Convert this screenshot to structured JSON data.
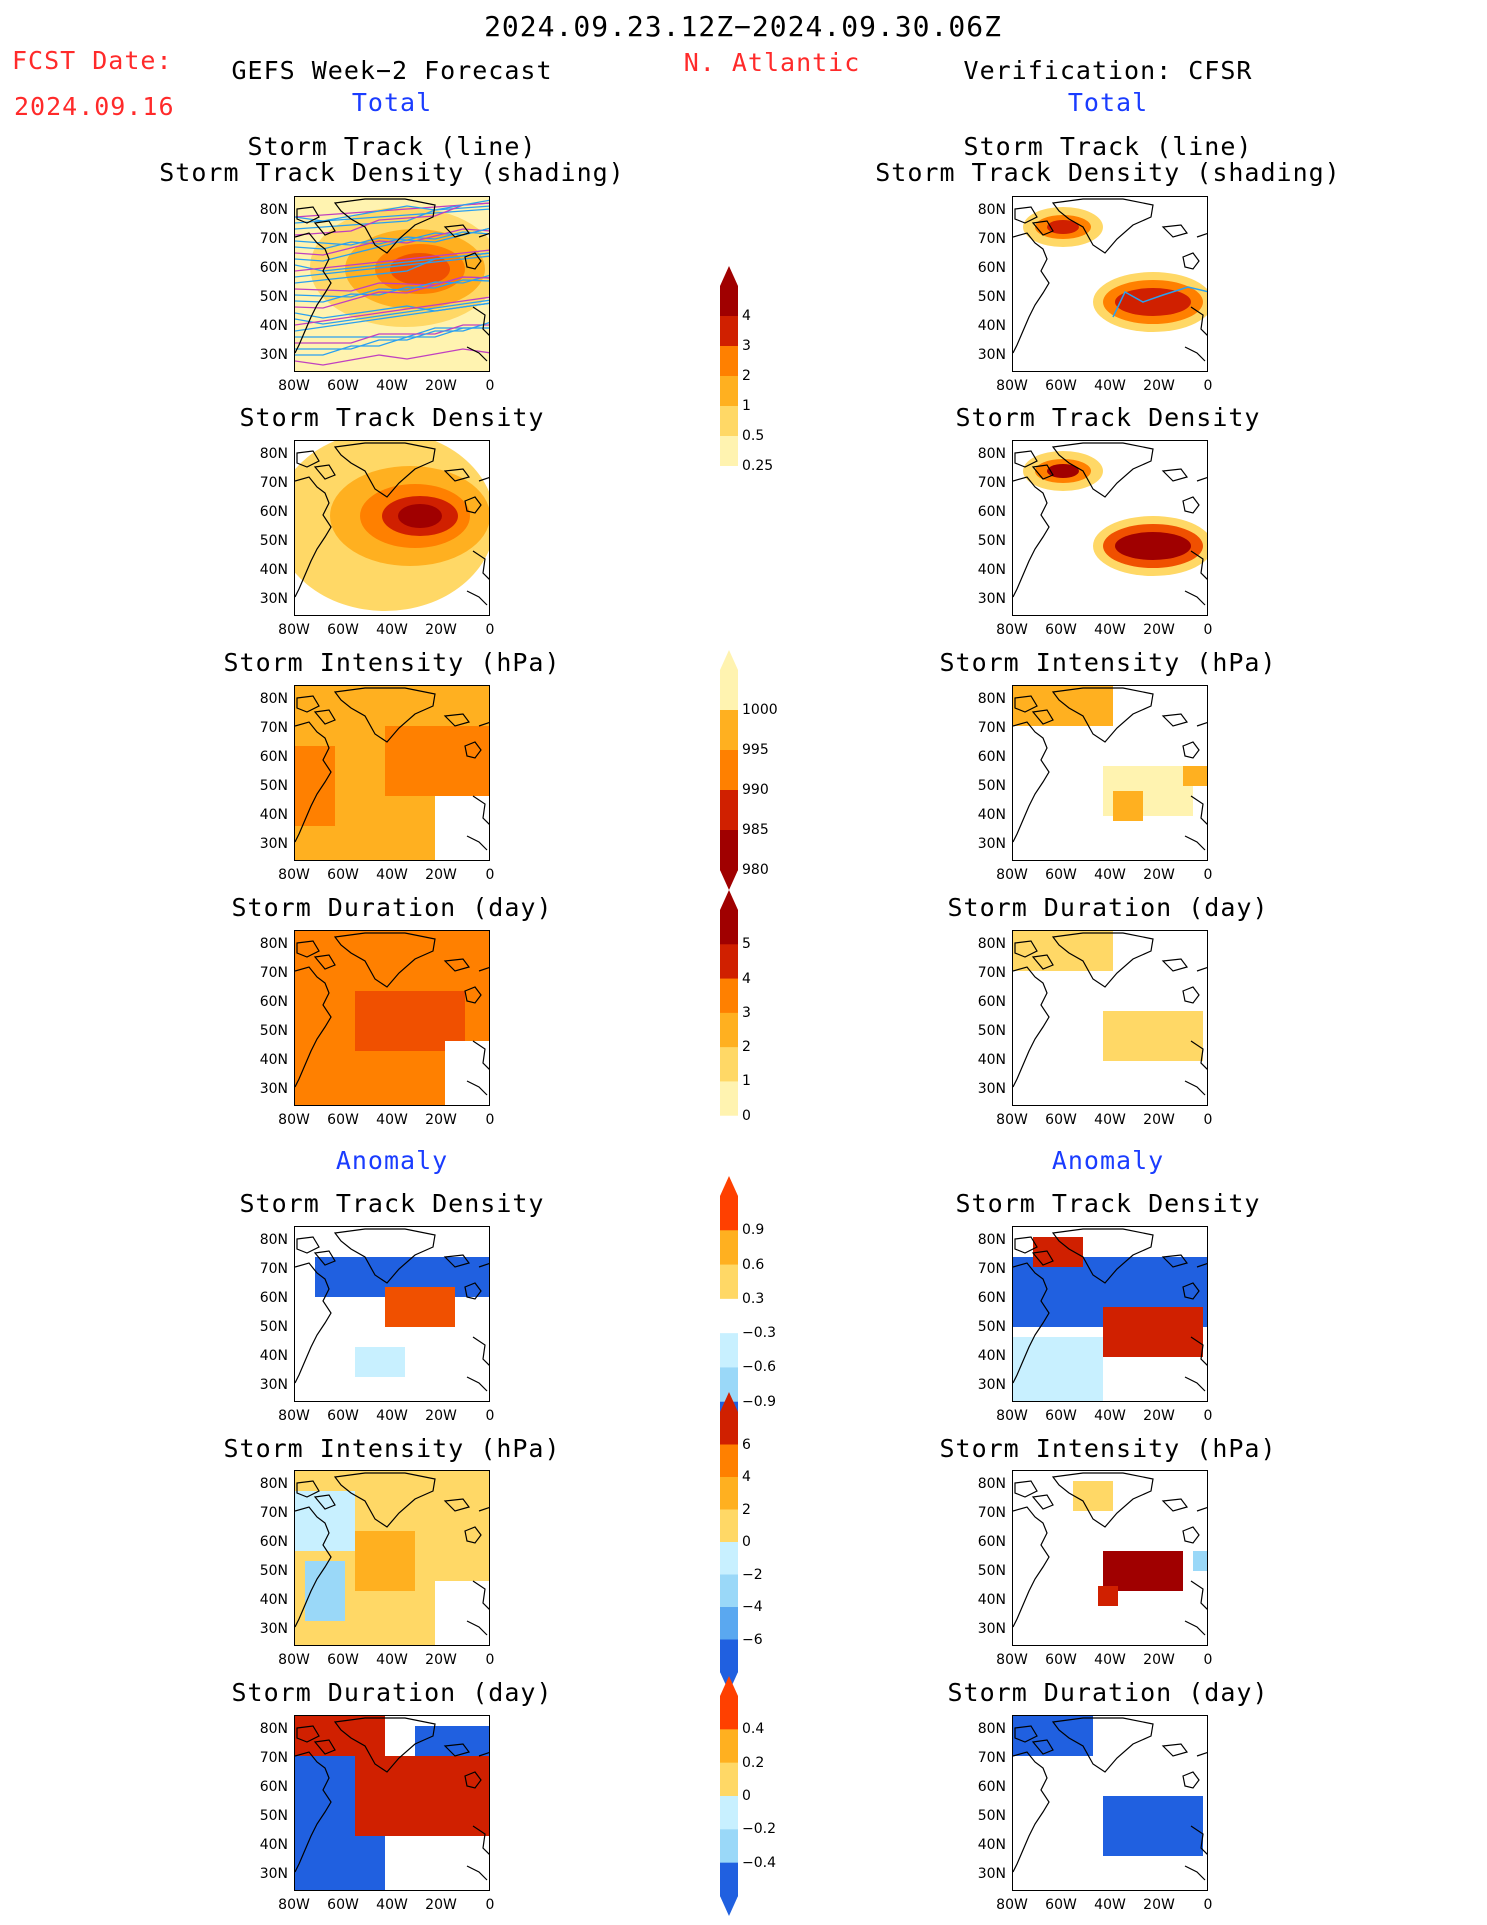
{
  "header": {
    "period": "2024.09.23.12Z−2024.09.30.06Z",
    "fcst_label": "FCST Date:",
    "fcst_date": "2024.09.16",
    "left_title": "GEFS Week−2 Forecast",
    "region": "N. Atlantic",
    "right_title": "Verification: CFSR",
    "total_left": "Total",
    "total_right": "Total",
    "anomaly_left": "Anomaly",
    "anomaly_right": "Anomaly"
  },
  "panel_titles": {
    "track_line": "Storm Track (line)",
    "track_density_shading": "Storm Track Density (shading)",
    "track_density": "Storm Track Density",
    "intensity": "Storm Intensity (hPa)",
    "duration": "Storm Duration (day)"
  },
  "axes": {
    "lat_labels": [
      "80N",
      "70N",
      "60N",
      "50N",
      "40N",
      "30N"
    ],
    "lon_labels": [
      "80W",
      "60W",
      "40W",
      "20W",
      "0"
    ]
  },
  "colorbars": {
    "density": [
      "4",
      "3",
      "2",
      "1",
      "0.5",
      "0.25"
    ],
    "intensity": [
      "1000",
      "995",
      "990",
      "985",
      "980"
    ],
    "duration": [
      "5",
      "4",
      "3",
      "2",
      "1",
      "0"
    ],
    "density_anom": [
      "0.9",
      "0.6",
      "0.3",
      "−0.3",
      "−0.6",
      "−0.9"
    ],
    "intensity_anom": [
      "6",
      "4",
      "2",
      "0",
      "−2",
      "−4",
      "−6"
    ],
    "duration_anom": [
      "0.4",
      "0.2",
      "0",
      "−0.2",
      "−0.4"
    ]
  },
  "colors": {
    "title_red": "#ff2a2a",
    "title_blue": "#1a3cff",
    "track_line": "#2aa0f0",
    "warm": [
      "#fff3b0",
      "#ffd866",
      "#ffb020",
      "#ff8000",
      "#f05000",
      "#d02000",
      "#a00000"
    ],
    "cool": [
      "#c8f0ff",
      "#9ad8f8",
      "#5aa8f0",
      "#2060e0"
    ]
  }
}
